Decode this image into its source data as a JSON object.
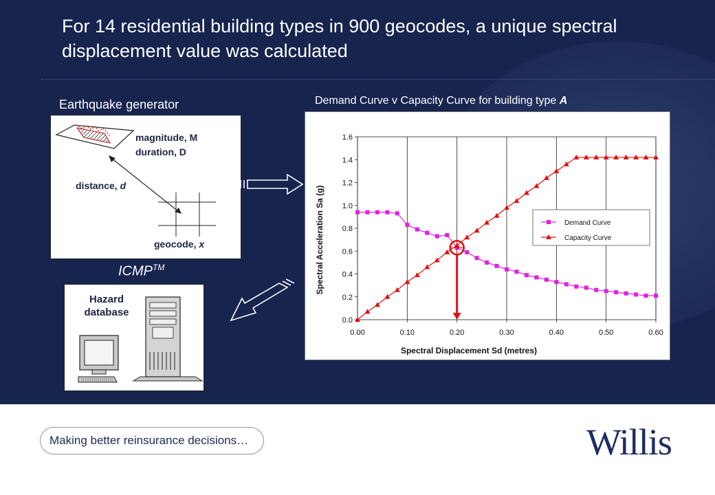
{
  "slide": {
    "title": "For 14 residential building types in 900 geocodes, a unique spectral displacement value was calculated",
    "tagline": "Making better reinsurance decisions…",
    "logo_text": "Willis",
    "colors": {
      "background": "#16244e",
      "demand": "#e020e0",
      "capacity": "#e01010",
      "logo": "#1c2d62"
    }
  },
  "earthquake": {
    "heading": "Earthquake generator",
    "magnitude_label": "magnitude,",
    "magnitude_var": "M",
    "duration_label": "duration,",
    "duration_var": "D",
    "distance_label": "distance,",
    "distance_var": "d",
    "geocode_label": "geocode,",
    "geocode_var": "x"
  },
  "icmp": {
    "label": "ICMP",
    "superscript": "TM"
  },
  "hazard": {
    "line1": "Hazard",
    "line2": "database",
    "icons": [
      "computer-monitor-icon",
      "keyboard-icon",
      "server-tower-icon"
    ]
  },
  "chart_data": {
    "type": "line",
    "title": "Demand Curve v Capacity Curve for building type",
    "title_var": "A",
    "xlabel": "Spectral Displacement Sd (metres)",
    "ylabel": "Spectral Acceleration Sa (g)",
    "xlim": [
      0,
      0.6
    ],
    "ylim": [
      0,
      1.6
    ],
    "xticks": [
      "0.00",
      "0.10",
      "0.20",
      "0.30",
      "0.40",
      "0.50",
      "0.60"
    ],
    "yticks": [
      "0.0",
      "0.2",
      "0.4",
      "0.6",
      "0.8",
      "1.0",
      "1.2",
      "1.4",
      "1.6"
    ],
    "grid": "vertical",
    "legend_position": "center-right",
    "intersection": {
      "x": 0.2,
      "y": 0.63
    },
    "series": [
      {
        "name": "Demand Curve",
        "color": "#e020e0",
        "marker": "square",
        "points": [
          [
            0.0,
            0.94
          ],
          [
            0.02,
            0.94
          ],
          [
            0.04,
            0.94
          ],
          [
            0.06,
            0.94
          ],
          [
            0.08,
            0.93
          ],
          [
            0.1,
            0.83
          ],
          [
            0.12,
            0.79
          ],
          [
            0.14,
            0.76
          ],
          [
            0.16,
            0.73
          ],
          [
            0.18,
            0.74
          ],
          [
            0.2,
            0.63
          ],
          [
            0.22,
            0.59
          ],
          [
            0.24,
            0.54
          ],
          [
            0.26,
            0.5
          ],
          [
            0.28,
            0.47
          ],
          [
            0.3,
            0.44
          ],
          [
            0.32,
            0.42
          ],
          [
            0.34,
            0.39
          ],
          [
            0.36,
            0.37
          ],
          [
            0.38,
            0.35
          ],
          [
            0.4,
            0.33
          ],
          [
            0.42,
            0.31
          ],
          [
            0.44,
            0.29
          ],
          [
            0.46,
            0.28
          ],
          [
            0.48,
            0.26
          ],
          [
            0.5,
            0.25
          ],
          [
            0.52,
            0.24
          ],
          [
            0.54,
            0.23
          ],
          [
            0.56,
            0.22
          ],
          [
            0.58,
            0.21
          ],
          [
            0.6,
            0.21
          ]
        ]
      },
      {
        "name": "Capacity Curve",
        "color": "#e01010",
        "marker": "triangle",
        "points": [
          [
            0.0,
            0.0
          ],
          [
            0.02,
            0.07
          ],
          [
            0.04,
            0.13
          ],
          [
            0.06,
            0.2
          ],
          [
            0.08,
            0.26
          ],
          [
            0.1,
            0.33
          ],
          [
            0.12,
            0.39
          ],
          [
            0.14,
            0.46
          ],
          [
            0.16,
            0.52
          ],
          [
            0.18,
            0.59
          ],
          [
            0.2,
            0.65
          ],
          [
            0.22,
            0.72
          ],
          [
            0.24,
            0.78
          ],
          [
            0.26,
            0.85
          ],
          [
            0.28,
            0.91
          ],
          [
            0.3,
            0.98
          ],
          [
            0.32,
            1.04
          ],
          [
            0.34,
            1.11
          ],
          [
            0.36,
            1.17
          ],
          [
            0.38,
            1.24
          ],
          [
            0.4,
            1.3
          ],
          [
            0.42,
            1.36
          ],
          [
            0.44,
            1.42
          ],
          [
            0.46,
            1.42
          ],
          [
            0.48,
            1.42
          ],
          [
            0.5,
            1.42
          ],
          [
            0.52,
            1.42
          ],
          [
            0.54,
            1.42
          ],
          [
            0.56,
            1.42
          ],
          [
            0.58,
            1.42
          ],
          [
            0.6,
            1.42
          ]
        ]
      }
    ]
  }
}
